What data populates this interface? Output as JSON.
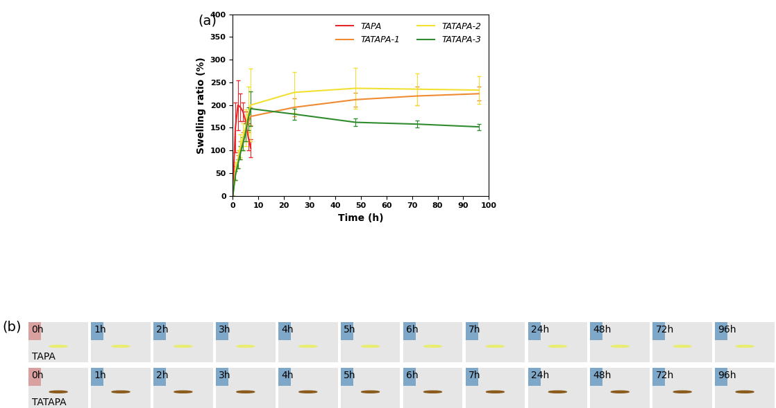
{
  "chart_data": {
    "type": "line",
    "xlabel": "Time (h)",
    "ylabel": "Swelling ratio (%)",
    "x": [
      0,
      1,
      2,
      3,
      4,
      5,
      6,
      7,
      24,
      48,
      72,
      96
    ],
    "series": [
      {
        "name": "TAPA",
        "color": "#e8262a",
        "line_style": "solid",
        "values": [
          0,
          150,
          200,
          195,
          185,
          165,
          130,
          105,
          null,
          null,
          null,
          null
        ],
        "errors": [
          0,
          55,
          55,
          30,
          20,
          20,
          30,
          20,
          null,
          null,
          null,
          null
        ]
      },
      {
        "name": "TATAPA-1",
        "color": "#f08a30",
        "line_style": "solid",
        "values": [
          0,
          50,
          75,
          100,
          120,
          140,
          160,
          175,
          195,
          212,
          220,
          225
        ],
        "errors": [
          0,
          15,
          15,
          20,
          20,
          20,
          20,
          20,
          20,
          15,
          20,
          15
        ]
      },
      {
        "name": "TATAPA-2",
        "color": "#f2e030",
        "line_style": "solid",
        "values": [
          0,
          55,
          80,
          110,
          130,
          150,
          180,
          200,
          228,
          237,
          235,
          233
        ],
        "errors": [
          0,
          20,
          20,
          25,
          30,
          40,
          60,
          80,
          45,
          45,
          35,
          30
        ]
      },
      {
        "name": "TATAPA-3",
        "color": "#2e8b2e",
        "line_style": "solid",
        "values": [
          0,
          45,
          70,
          95,
          115,
          140,
          170,
          192,
          180,
          162,
          158,
          152
        ],
        "errors": [
          0,
          10,
          10,
          15,
          15,
          20,
          25,
          38,
          12,
          8,
          8,
          7
        ]
      }
    ],
    "xlim": [
      0,
      100
    ],
    "xticks": [
      0,
      10,
      20,
      30,
      40,
      50,
      60,
      70,
      80,
      90,
      100
    ],
    "ylim": [
      0,
      400
    ],
    "yticks": [
      0,
      50,
      100,
      150,
      200,
      250,
      300,
      350,
      400
    ],
    "legend": "upper right",
    "grid": false
  },
  "panel_labels": [
    "(a)",
    "(b)"
  ],
  "photos": {
    "times": [
      "0h",
      "1h",
      "2h",
      "3h",
      "4h",
      "5h",
      "6h",
      "7h",
      "24h",
      "48h",
      "72h",
      "96h"
    ],
    "rows": [
      "TAPA",
      "TATAPA"
    ]
  }
}
